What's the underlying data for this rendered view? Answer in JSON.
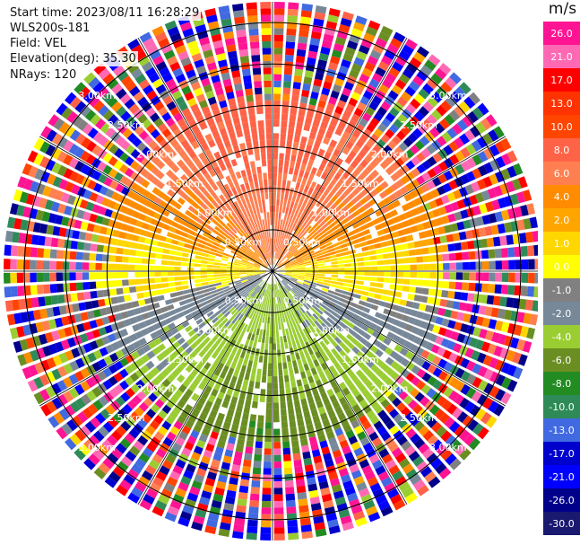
{
  "info": {
    "start_time": "Start time: 2023/08/11 16:28:29",
    "instrument": "WLS200s-181",
    "field": "Field: VEL",
    "elevation": "Elevation(deg): 35.30",
    "nrays": "NRays: 120"
  },
  "chart_data": {
    "type": "heatmap",
    "projection": "polar-ppi",
    "title": "",
    "n_rays": 120,
    "elevation_deg": 35.3,
    "field": "VEL",
    "range_rings_km": [
      0.5,
      1.0,
      1.5,
      2.0,
      2.5,
      3.0
    ],
    "ring_labels": [
      "0.50km",
      "1.00km",
      "1.50km",
      "2.00km",
      "2.50km",
      "3.00km"
    ],
    "spoke_angles_deg": [
      0,
      30,
      60,
      90,
      120,
      150,
      180,
      210,
      240,
      270,
      300,
      330
    ],
    "max_range_km": 3.25,
    "colorbar": {
      "unit": "m/s",
      "ticks": [
        "26.0",
        "21.0",
        "17.0",
        "13.0",
        "10.0",
        "8.0",
        "6.0",
        "4.0",
        "2.0",
        "1.0",
        "0.0",
        "-1.0",
        "-2.0",
        "-4.0",
        "-6.0",
        "-8.0",
        "-10.0",
        "-13.0",
        "-17.0",
        "-21.0",
        "-26.0",
        "-30.0"
      ],
      "colors": [
        "#ff1493",
        "#ff69b4",
        "#ff0000",
        "#ff3300",
        "#ff4500",
        "#ff6347",
        "#ff7f50",
        "#ff8c00",
        "#ffa500",
        "#ffd700",
        "#ffff00",
        "#808080",
        "#778899",
        "#9acd32",
        "#6b8e23",
        "#228b22",
        "#2e8b57",
        "#4169e1",
        "#0000cd",
        "#0000ff",
        "#00008b",
        "#191970"
      ]
    },
    "velocity_pattern": {
      "receding_sector": "north (yellow/orange, +2 to +8 m/s)",
      "approaching_sector": "south (green, -2 to -6 m/s)",
      "near_zero_band": "west-east (grey, -1 to +1 m/s)",
      "far_range": "noise (random colors)"
    }
  }
}
